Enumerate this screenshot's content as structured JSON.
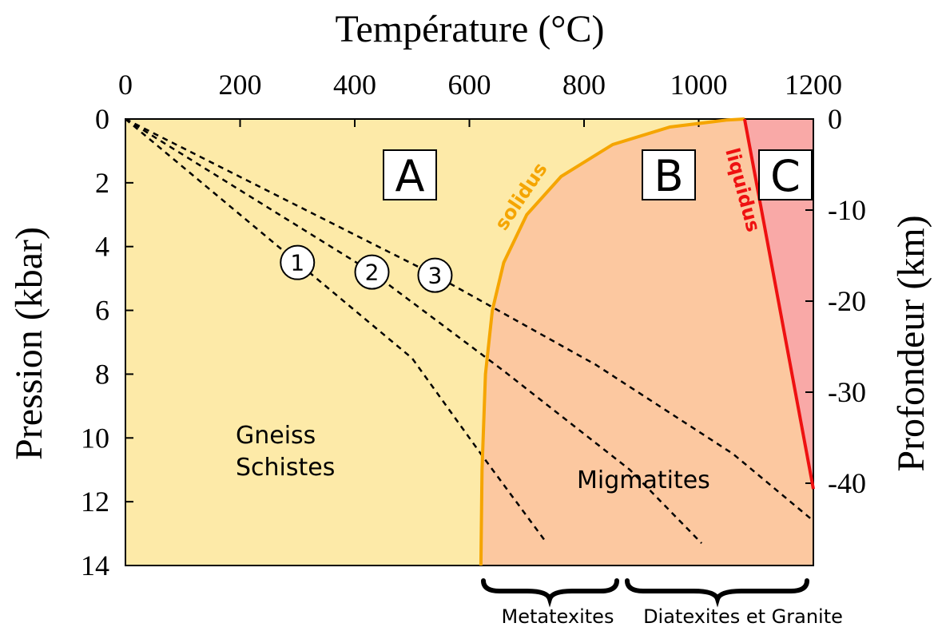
{
  "chart_data": {
    "type": "diagram",
    "title": "Température (°C)",
    "xlabel": "Température (°C)",
    "ylabel": "Pression (kbar)",
    "y2label": "Profondeur (km)",
    "xlim": [
      0,
      1200
    ],
    "ylim": [
      0,
      14
    ],
    "x_ticks": [
      "0",
      "200",
      "400",
      "600",
      "800",
      "1000",
      "1200"
    ],
    "y_ticks": [
      "0",
      "2",
      "4",
      "6",
      "8",
      "10",
      "12",
      "14"
    ],
    "y2_ticks": [
      "0",
      "-10",
      "-20",
      "-30",
      "-40"
    ],
    "y2_values_km": [
      0,
      -10,
      -20,
      -30,
      -40
    ],
    "zones": [
      {
        "id": "A",
        "label": "A",
        "color": "#fdeaa8",
        "rocks": [
          "Gneiss",
          "Schistes"
        ]
      },
      {
        "id": "B",
        "label": "B",
        "color": "#fcc8a0",
        "rocks": [
          "Migmatites"
        ]
      },
      {
        "id": "C",
        "label": "C",
        "color": "#f9a9a7",
        "rocks": []
      }
    ],
    "solidus": {
      "label": "solidus",
      "color": "#f5a500",
      "points": [
        [
          620,
          14
        ],
        [
          622,
          11
        ],
        [
          628,
          8
        ],
        [
          640,
          6
        ],
        [
          660,
          4.5
        ],
        [
          700,
          3
        ],
        [
          760,
          1.8
        ],
        [
          850,
          0.8
        ],
        [
          950,
          0.25
        ],
        [
          1050,
          0.03
        ],
        [
          1080,
          0
        ]
      ]
    },
    "liquidus": {
      "label": "liquidus",
      "color": "#ee1111",
      "points": [
        [
          1080,
          0
        ],
        [
          1200,
          11.6
        ]
      ]
    },
    "gradients": [
      {
        "label": "1",
        "points": [
          [
            0,
            0
          ],
          [
            300,
            4.5
          ],
          [
            500,
            7.5
          ],
          [
            620,
            10.5
          ],
          [
            735,
            13.3
          ]
        ]
      },
      {
        "label": "2",
        "points": [
          [
            0,
            0
          ],
          [
            430,
            4.8
          ],
          [
            660,
            7.9
          ],
          [
            880,
            11
          ],
          [
            1005,
            13.3
          ]
        ]
      },
      {
        "label": "3",
        "points": [
          [
            0,
            0
          ],
          [
            540,
            4.9
          ],
          [
            820,
            7.7
          ],
          [
            1060,
            10.5
          ],
          [
            1200,
            12.6
          ]
        ]
      }
    ],
    "brackets": [
      {
        "label": "Metatexites",
        "x_range": [
          620,
          860
        ]
      },
      {
        "label": "Diatexites et Granite",
        "x_range": [
          870,
          1200
        ]
      }
    ]
  }
}
